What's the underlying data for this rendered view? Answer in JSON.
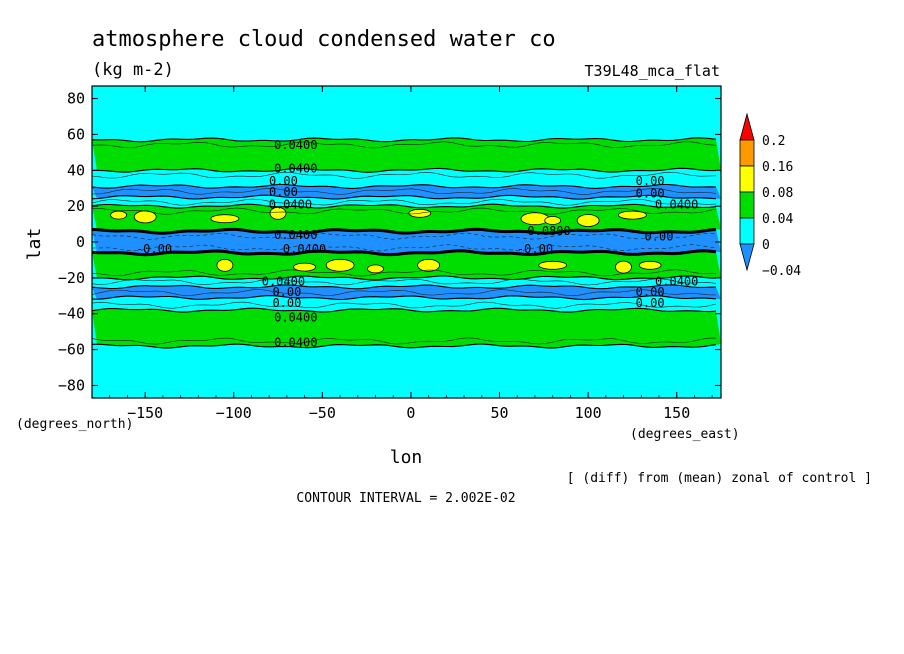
{
  "chart_data": {
    "type": "heatmap",
    "title": "atmosphere cloud condensed water co",
    "units": "(kg m-2)",
    "model_label": "T39L48_mca_flat",
    "xlabel": "lon",
    "ylabel": "lat",
    "x_units": "(degrees_east)",
    "y_units": "(degrees_north)",
    "xlim": [
      -180,
      175
    ],
    "ylim": [
      -87,
      87
    ],
    "x_ticks": [
      -150,
      -100,
      -50,
      0,
      50,
      100,
      150
    ],
    "y_ticks": [
      80,
      60,
      40,
      20,
      0,
      -20,
      -40,
      -60,
      -80
    ],
    "note": "[ (diff) from (mean) zonal of control ]",
    "contour_interval": "CONTOUR INTERVAL = 2.002E-02",
    "colorbar": {
      "levels": [
        -0.04,
        0,
        0.04,
        0.08,
        0.16,
        0.2
      ],
      "labels": [
        "0.2",
        "0.16",
        "0.08",
        "0.04",
        "0",
        "-0.04"
      ],
      "colors": [
        "#ff0000",
        "#ff9900",
        "#ffff00",
        "#00dd00",
        "#00ffff",
        "#1e90ff"
      ]
    },
    "bands": [
      {
        "lat_from": 87,
        "lat_to": 57,
        "value": "0"
      },
      {
        "lat_from": 57,
        "lat_to": 40,
        "value": "0.04"
      },
      {
        "lat_from": 40,
        "lat_to": 31,
        "value": "0"
      },
      {
        "lat_from": 31,
        "lat_to": 25,
        "value": "-0.04"
      },
      {
        "lat_from": 25,
        "lat_to": 20,
        "value": "0"
      },
      {
        "lat_from": 20,
        "lat_to": 6,
        "value": "0.04"
      },
      {
        "lat_from": 6,
        "lat_to": -6,
        "value": "-0.04"
      },
      {
        "lat_from": -6,
        "lat_to": -20,
        "value": "0.04"
      },
      {
        "lat_from": -20,
        "lat_to": -25,
        "value": "0"
      },
      {
        "lat_from": -25,
        "lat_to": -31,
        "value": "-0.04"
      },
      {
        "lat_from": -31,
        "lat_to": -38,
        "value": "0"
      },
      {
        "lat_from": -38,
        "lat_to": -58,
        "value": "0.04"
      },
      {
        "lat_from": -58,
        "lat_to": -87,
        "value": "0"
      }
    ],
    "patches_0_08": [
      {
        "lon": -165,
        "lat": 15
      },
      {
        "lon": -150,
        "lat": 14
      },
      {
        "lon": -105,
        "lat": 13
      },
      {
        "lon": -75,
        "lat": 16
      },
      {
        "lon": 5,
        "lat": 16
      },
      {
        "lon": 70,
        "lat": 13
      },
      {
        "lon": 80,
        "lat": 12
      },
      {
        "lon": 100,
        "lat": 12
      },
      {
        "lon": 125,
        "lat": 15
      },
      {
        "lon": -105,
        "lat": -13
      },
      {
        "lon": -60,
        "lat": -14
      },
      {
        "lon": -40,
        "lat": -13
      },
      {
        "lon": -20,
        "lat": -15
      },
      {
        "lon": 10,
        "lat": -13
      },
      {
        "lon": 80,
        "lat": -13
      },
      {
        "lon": 120,
        "lat": -14
      },
      {
        "lon": 135,
        "lat": -13
      }
    ],
    "contour_labels": [
      {
        "text": "0.0400",
        "lon": -65,
        "lat": 54
      },
      {
        "text": "0.0400",
        "lon": -65,
        "lat": 41
      },
      {
        "text": "0.00",
        "lon": -72,
        "lat": 34
      },
      {
        "text": "0.00",
        "lon": -72,
        "lat": 28
      },
      {
        "text": "0.0400",
        "lon": -68,
        "lat": 21
      },
      {
        "text": "0.0400",
        "lon": -65,
        "lat": 4
      },
      {
        "text": "0.0400",
        "lon": -60,
        "lat": -4
      },
      {
        "text": "-0.00",
        "lon": -145,
        "lat": -4
      },
      {
        "text": "0.00",
        "lon": 135,
        "lat": 34
      },
      {
        "text": "0.00",
        "lon": 135,
        "lat": 27
      },
      {
        "text": "0.0400",
        "lon": 150,
        "lat": 21
      },
      {
        "text": "0.0800",
        "lon": 78,
        "lat": 6
      },
      {
        "text": "-0.00",
        "lon": 70,
        "lat": -4
      },
      {
        "text": "0.00",
        "lon": 140,
        "lat": 3
      },
      {
        "text": "0.0400",
        "lon": -72,
        "lat": -22
      },
      {
        "text": "0.00",
        "lon": -70,
        "lat": -28
      },
      {
        "text": "0.00",
        "lon": -70,
        "lat": -34
      },
      {
        "text": "0.0400",
        "lon": -65,
        "lat": -42
      },
      {
        "text": "0.0400",
        "lon": -65,
        "lat": -56
      },
      {
        "text": "0.0400",
        "lon": 150,
        "lat": -22
      },
      {
        "text": "0.00",
        "lon": 135,
        "lat": -28
      },
      {
        "text": "0.00",
        "lon": 135,
        "lat": -34
      }
    ]
  }
}
